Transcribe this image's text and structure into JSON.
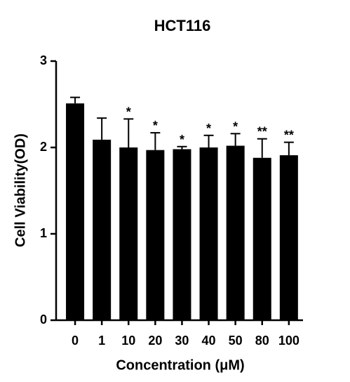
{
  "chart_data": {
    "type": "bar",
    "title": "HCT116",
    "x_label": "Concentration (μM)",
    "y_label": "Cell Viability(OD)",
    "categories": [
      "0",
      "1",
      "10",
      "20",
      "30",
      "40",
      "50",
      "80",
      "100"
    ],
    "values": [
      2.51,
      2.09,
      2.0,
      1.97,
      1.98,
      2.0,
      2.02,
      1.88,
      1.91
    ],
    "errors": [
      0.07,
      0.25,
      0.33,
      0.2,
      0.03,
      0.14,
      0.14,
      0.22,
      0.15
    ],
    "annotations": [
      null,
      null,
      "*",
      "*",
      "*",
      "*",
      "*",
      "**",
      "**"
    ],
    "color": "#000000",
    "ylim": [
      0,
      3
    ],
    "yticks": [
      0,
      1,
      2,
      3
    ]
  }
}
